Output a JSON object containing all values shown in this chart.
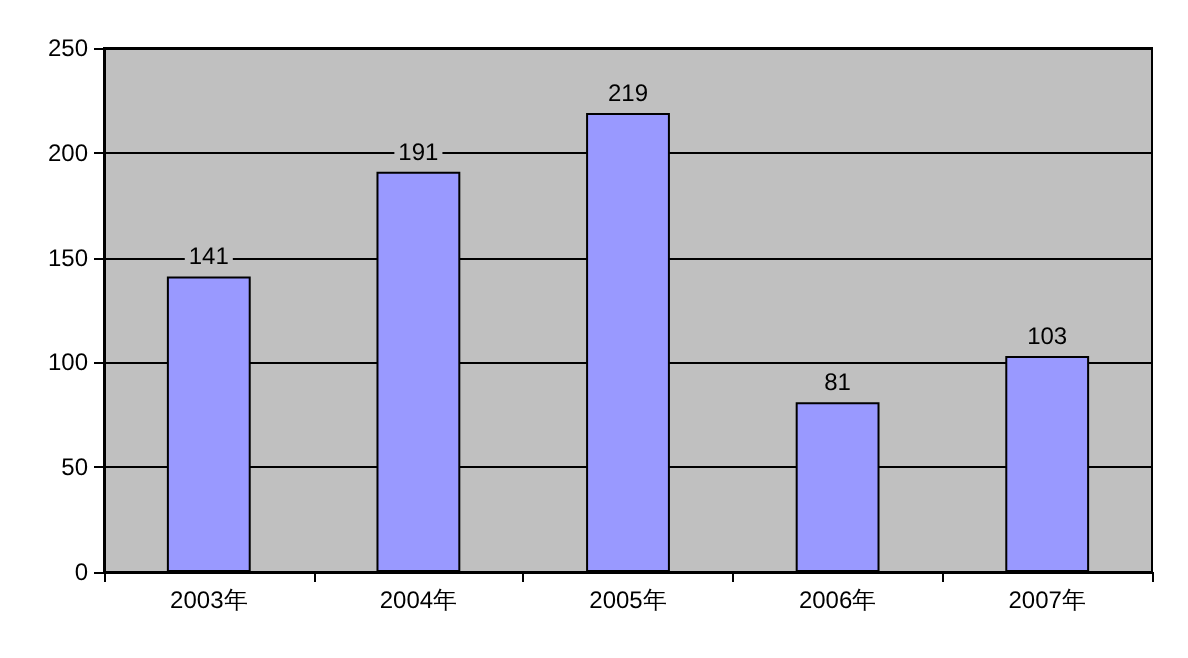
{
  "chart_data": {
    "type": "bar",
    "categories": [
      "2003年",
      "2004年",
      "2005年",
      "2006年",
      "2007年"
    ],
    "values": [
      141,
      191,
      219,
      81,
      103
    ],
    "color": "#9999ff",
    "ylim": [
      0,
      250
    ],
    "yticks": [
      0,
      50,
      100,
      150,
      200,
      250
    ],
    "grid": "y",
    "data_labels": true
  }
}
